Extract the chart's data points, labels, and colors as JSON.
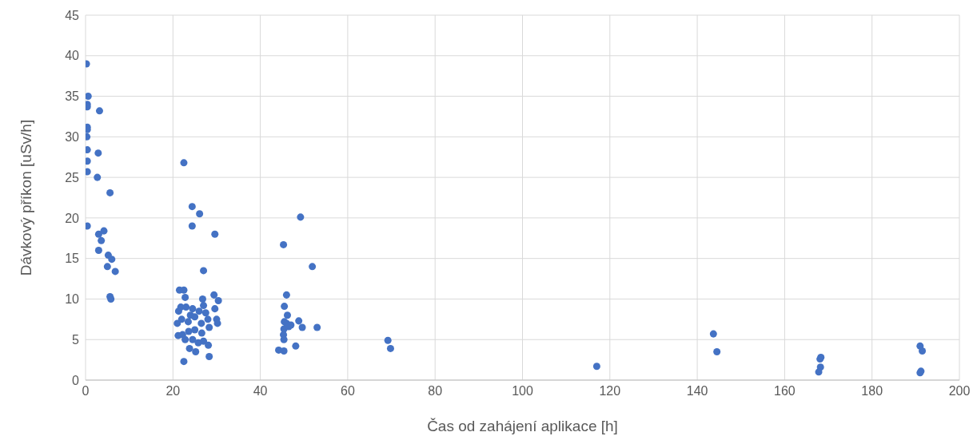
{
  "chart_data": {
    "type": "scatter",
    "xlabel": "Čas od zahájení aplikace [h]",
    "ylabel": "Dávkový příkon [uSv/h]",
    "xlim": [
      0,
      200
    ],
    "xticks": [
      0,
      20,
      40,
      60,
      80,
      100,
      120,
      140,
      160,
      180,
      200
    ],
    "ylim": [
      0,
      45
    ],
    "yticks": [
      0,
      5,
      10,
      15,
      20,
      25,
      30,
      35,
      40,
      45
    ],
    "grid": true,
    "marker": "circle",
    "series": [
      {
        "color": "#4472c4",
        "x": [
          0.2,
          0.6,
          0.4,
          0.4,
          3.2,
          0.4,
          0.4,
          0.3,
          0.4,
          2.9,
          0.4,
          2.7,
          0.4,
          5.6,
          0.4,
          3,
          4.2,
          3.6,
          3,
          5.2,
          6,
          5,
          6.8,
          5.6,
          5.8,
          22.5,
          24.4,
          26.1,
          24.4,
          29.6,
          27,
          21.5,
          22.5,
          22.8,
          26.8,
          29.4,
          30.4,
          29.6,
          21.3,
          21.8,
          23,
          24.5,
          26,
          27.5,
          21,
          22,
          23.5,
          25,
          26.5,
          28,
          30,
          30.2,
          21.2,
          22.2,
          23.6,
          25,
          26.6,
          28.3,
          22.8,
          24.5,
          25.8,
          27,
          23.8,
          25.2,
          28.1,
          28.3,
          22.5,
          24,
          27,
          49.2,
          45.3,
          51.9,
          46,
          45.5,
          46.2,
          45.5,
          46,
          47,
          48.8,
          49.6,
          53,
          45.4,
          45.3,
          45.4,
          46.5,
          44.2,
          45.4,
          48.1,
          69.2,
          69.8,
          117,
          143.7,
          144.5,
          168.3,
          168.1,
          168.2,
          167.8,
          191,
          191.5,
          191.2,
          191
        ],
        "values": [
          39,
          35,
          34,
          33.7,
          33.2,
          31.2,
          30.9,
          30,
          28.4,
          28,
          27,
          25,
          25.7,
          23.1,
          19,
          18,
          18.4,
          17.2,
          16,
          15.4,
          14.9,
          14,
          13.4,
          10.3,
          10,
          26.8,
          21.4,
          20.5,
          19,
          18,
          13.5,
          11.1,
          11.1,
          10.2,
          10,
          10.5,
          9.8,
          8.8,
          8.5,
          9,
          9,
          8.8,
          8.5,
          8.3,
          7,
          7.5,
          7.2,
          7.8,
          7,
          7.5,
          7.5,
          7,
          5.5,
          5.6,
          6,
          6.2,
          5.8,
          6.5,
          5,
          5,
          4.6,
          4.8,
          3.9,
          3.5,
          4.3,
          2.9,
          2.3,
          8,
          9.2,
          20.1,
          16.7,
          14,
          10.5,
          9.1,
          8,
          7.2,
          7,
          6.8,
          7.3,
          6.5,
          6.5,
          6.3,
          5.6,
          5,
          6.6,
          3.7,
          3.6,
          4.2,
          4.9,
          3.9,
          1.7,
          5.7,
          3.5,
          2.8,
          2.6,
          1.6,
          1.0,
          4.2,
          3.6,
          1.1,
          0.9
        ]
      }
    ]
  }
}
